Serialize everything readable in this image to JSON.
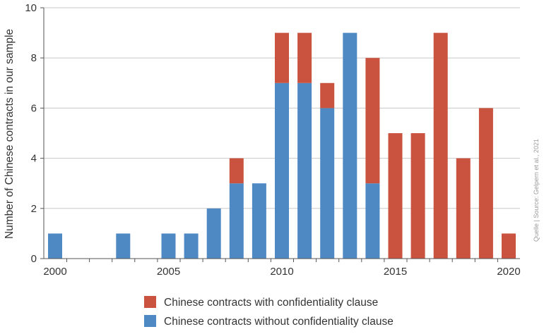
{
  "chart_data": {
    "type": "bar",
    "stacked": true,
    "x": [
      2000,
      2001,
      2002,
      2003,
      2004,
      2005,
      2006,
      2007,
      2008,
      2009,
      2010,
      2011,
      2012,
      2013,
      2014,
      2015,
      2016,
      2017,
      2018,
      2019,
      2020
    ],
    "xticks": [
      2000,
      2005,
      2010,
      2015,
      2020
    ],
    "yticks": [
      0,
      2,
      4,
      6,
      8,
      10
    ],
    "ylim": [
      0,
      10
    ],
    "ylabel": "Number of Chinese contracts in our sample",
    "xlabel": "",
    "grid": "horizontal",
    "legend_position": "bottom",
    "series": [
      {
        "name": "Chinese contracts without confidentiality clause",
        "color": "#4f89c4",
        "values": [
          1,
          0,
          0,
          1,
          0,
          1,
          1,
          2,
          3,
          3,
          7,
          7,
          6,
          9,
          3,
          0,
          0,
          0,
          0,
          0,
          0
        ]
      },
      {
        "name": "Chinese contracts with confidentiality clause",
        "color": "#c9533f",
        "values": [
          0,
          0,
          0,
          0,
          0,
          0,
          0,
          0,
          1,
          0,
          2,
          2,
          1,
          0,
          5,
          5,
          5,
          9,
          4,
          6,
          1
        ]
      }
    ],
    "legend_order": [
      1,
      0
    ],
    "source": "Quelle | Source: Gelpern et al., 2021"
  }
}
